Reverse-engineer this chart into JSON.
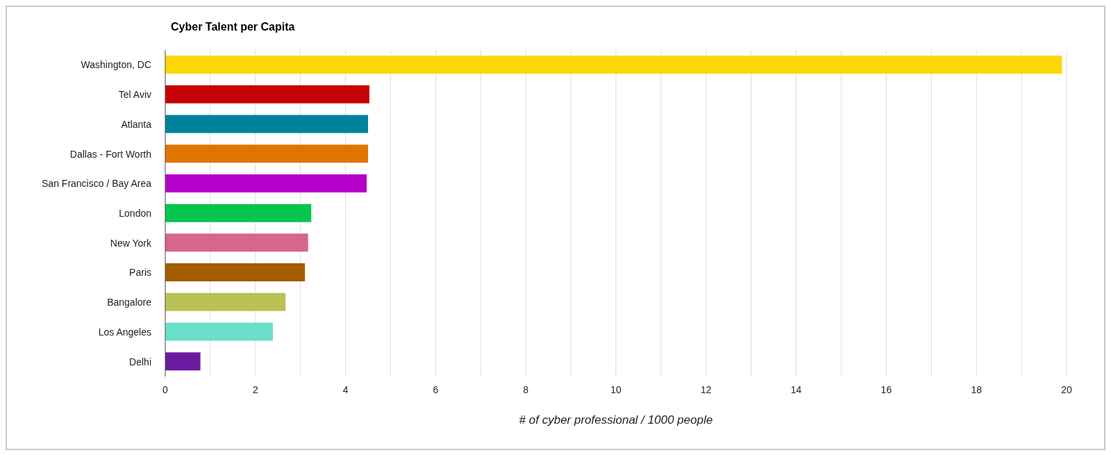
{
  "chart_data": {
    "type": "bar",
    "orientation": "horizontal",
    "title": "Cyber Talent per Capita",
    "xlabel": "# of cyber professional / 1000 people",
    "categories": [
      "Washington, DC",
      "Tel Aviv",
      "Atlanta",
      "Dallas - Fort Worth",
      "San Francisco / Bay Area",
      "London",
      "New York",
      "Paris",
      "Bangalore",
      "Los Angeles",
      "Delhi"
    ],
    "values": [
      19.9,
      4.53,
      4.5,
      4.5,
      4.47,
      3.24,
      3.17,
      3.1,
      2.67,
      2.39,
      0.78
    ],
    "colors": [
      "#fdd606",
      "#c60006",
      "#00829a",
      "#e07400",
      "#b400c8",
      "#06c54c",
      "#d6668a",
      "#a35c00",
      "#bac157",
      "#6adfc8",
      "#6a1a9e"
    ],
    "xlim": [
      0,
      20
    ],
    "xticks": [
      0,
      {
        "value": 1,
        "label": null
      },
      2,
      {
        "value": 3,
        "label": null
      },
      4,
      {
        "value": 5,
        "label": null
      },
      6,
      {
        "value": 7,
        "label": null
      },
      8,
      {
        "value": 9,
        "label": null
      },
      10,
      {
        "value": 11,
        "label": null
      },
      12,
      {
        "value": 13,
        "label": null
      },
      14,
      {
        "value": 15,
        "label": null
      },
      16,
      {
        "value": 17,
        "label": null
      },
      18,
      {
        "value": 19,
        "label": null
      },
      20
    ],
    "grid": "x",
    "legend": false
  }
}
